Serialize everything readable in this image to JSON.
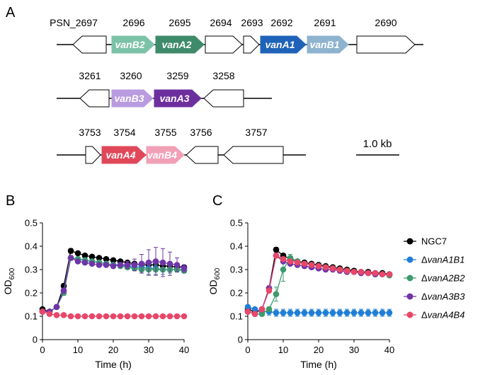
{
  "panel_labels": {
    "a": "A",
    "b": "B",
    "c": "C"
  },
  "operons": [
    {
      "genes": [
        {
          "num": "PSN_2697",
          "name": "",
          "dir": "left",
          "color": "#ffffff"
        },
        {
          "num": "2696",
          "name": "vanB2",
          "dir": "right",
          "color": "#7cc2a9"
        },
        {
          "num": "2695",
          "name": "vanA2",
          "dir": "right",
          "color": "#3f8a6a"
        },
        {
          "num": "2694",
          "name": "",
          "dir": "right",
          "color": "#ffffff"
        },
        {
          "num": "2693",
          "name": "",
          "dir": "right",
          "color": "#ffffff"
        },
        {
          "num": "2692",
          "name": "vanA1",
          "dir": "right",
          "color": "#1f63b8"
        },
        {
          "num": "2691",
          "name": "vanB1",
          "dir": "right",
          "color": "#8db3cf"
        },
        {
          "num": "2690",
          "name": "",
          "dir": "right",
          "color": "#ffffff"
        }
      ]
    },
    {
      "genes": [
        {
          "num": "3261",
          "name": "",
          "dir": "left",
          "color": "#ffffff"
        },
        {
          "num": "3260",
          "name": "vanB3",
          "dir": "right",
          "color": "#b99be0"
        },
        {
          "num": "3259",
          "name": "vanA3",
          "dir": "right",
          "color": "#6d2f9e"
        },
        {
          "num": "3258",
          "name": "",
          "dir": "left",
          "color": "#ffffff"
        }
      ]
    },
    {
      "genes": [
        {
          "num": "3753",
          "name": "",
          "dir": "right",
          "color": "#ffffff"
        },
        {
          "num": "3754",
          "name": "vanA4",
          "dir": "right",
          "color": "#e0485a"
        },
        {
          "num": "3755",
          "name": "vanB4",
          "dir": "right",
          "color": "#f2a0b6"
        },
        {
          "num": "3756",
          "name": "",
          "dir": "left",
          "color": "#ffffff"
        },
        {
          "num": "3757",
          "name": "",
          "dir": "left",
          "color": "#ffffff"
        }
      ]
    }
  ],
  "scale_bar": {
    "label": "1.0 kb"
  },
  "legend": [
    {
      "prefix": "",
      "text": "NGC7",
      "color": "#000000"
    },
    {
      "prefix": "Δ",
      "text": "vanA1B1",
      "color": "#1f7fd6"
    },
    {
      "prefix": "Δ",
      "text": "vanA2B2",
      "color": "#3d9a6d"
    },
    {
      "prefix": "Δ",
      "text": "vanA3B3",
      "color": "#6e35a8"
    },
    {
      "prefix": "Δ",
      "text": "vanA4B4",
      "color": "#e8476a"
    }
  ],
  "chart_data": [
    {
      "panel": "B",
      "type": "line",
      "xlabel": "Time (h)",
      "ylabel": "OD",
      "ylabel_sub": "600",
      "xlim": [
        0,
        40
      ],
      "ylim": [
        0,
        0.5
      ],
      "xticks": [
        0,
        10,
        20,
        30,
        40
      ],
      "yticks": [
        0,
        0.1,
        0.2,
        0.3,
        0.4,
        0.5
      ],
      "ytick_labels": [
        "0",
        "0.1",
        "0.2",
        "0.3",
        "0.4",
        "0.5"
      ],
      "x": [
        0,
        2,
        4,
        6,
        8,
        10,
        12,
        14,
        16,
        18,
        20,
        22,
        24,
        26,
        28,
        30,
        32,
        34,
        36,
        38,
        40
      ],
      "series": [
        {
          "name": "NGC7",
          "color": "#000000",
          "values": [
            0.13,
            0.12,
            0.14,
            0.23,
            0.38,
            0.37,
            0.36,
            0.355,
            0.35,
            0.345,
            0.34,
            0.335,
            0.33,
            0.325,
            0.32,
            0.32,
            0.32,
            0.315,
            0.315,
            0.31,
            0.31
          ],
          "errors": [
            0.005,
            0.005,
            0.005,
            0.01,
            0.01,
            0.008,
            0.006,
            0.006,
            0.006,
            0.006,
            0.006,
            0.006,
            0.006,
            0.006,
            0.006,
            0.006,
            0.006,
            0.006,
            0.006,
            0.006,
            0.006
          ]
        },
        {
          "name": "ΔvanA1B1",
          "color": "#1f7fd6",
          "values": [
            0.12,
            0.12,
            0.14,
            0.21,
            0.35,
            0.345,
            0.34,
            0.335,
            0.33,
            0.325,
            0.32,
            0.32,
            0.315,
            0.31,
            0.31,
            0.305,
            0.305,
            0.3,
            0.3,
            0.3,
            0.3
          ],
          "errors": [
            0.005,
            0.005,
            0.005,
            0.01,
            0.01,
            0.006,
            0.006,
            0.006,
            0.006,
            0.006,
            0.006,
            0.006,
            0.006,
            0.006,
            0.006,
            0.006,
            0.006,
            0.006,
            0.006,
            0.006,
            0.006
          ]
        },
        {
          "name": "ΔvanA2B2",
          "color": "#3d9a6d",
          "values": [
            0.12,
            0.12,
            0.14,
            0.2,
            0.35,
            0.345,
            0.34,
            0.335,
            0.33,
            0.325,
            0.32,
            0.315,
            0.31,
            0.305,
            0.3,
            0.3,
            0.3,
            0.3,
            0.3,
            0.3,
            0.295
          ],
          "errors": [
            0.005,
            0.005,
            0.005,
            0.01,
            0.01,
            0.006,
            0.006,
            0.006,
            0.006,
            0.006,
            0.006,
            0.006,
            0.006,
            0.01,
            0.015,
            0.02,
            0.02,
            0.02,
            0.015,
            0.01,
            0.006
          ]
        },
        {
          "name": "ΔvanA3B3",
          "color": "#6e35a8",
          "values": [
            0.12,
            0.12,
            0.14,
            0.21,
            0.35,
            0.335,
            0.33,
            0.325,
            0.32,
            0.32,
            0.315,
            0.32,
            0.32,
            0.32,
            0.325,
            0.33,
            0.335,
            0.33,
            0.325,
            0.32,
            0.305
          ],
          "errors": [
            0.005,
            0.005,
            0.005,
            0.01,
            0.01,
            0.006,
            0.006,
            0.006,
            0.006,
            0.006,
            0.006,
            0.01,
            0.015,
            0.025,
            0.04,
            0.055,
            0.06,
            0.06,
            0.05,
            0.03,
            0.015
          ]
        },
        {
          "name": "ΔvanA4B4",
          "color": "#e8476a",
          "values": [
            0.12,
            0.11,
            0.105,
            0.105,
            0.1,
            0.1,
            0.1,
            0.1,
            0.1,
            0.1,
            0.1,
            0.1,
            0.1,
            0.1,
            0.1,
            0.1,
            0.1,
            0.1,
            0.1,
            0.1,
            0.1
          ],
          "errors": [
            0.005,
            0.005,
            0.003,
            0.003,
            0.003,
            0.003,
            0.003,
            0.003,
            0.003,
            0.003,
            0.003,
            0.003,
            0.003,
            0.003,
            0.003,
            0.003,
            0.003,
            0.003,
            0.003,
            0.003,
            0.003
          ]
        }
      ]
    },
    {
      "panel": "C",
      "type": "line",
      "xlabel": "Time (h)",
      "ylabel": "OD",
      "ylabel_sub": "600",
      "xlim": [
        0,
        40
      ],
      "ylim": [
        0,
        0.5
      ],
      "xticks": [
        0,
        10,
        20,
        30,
        40
      ],
      "yticks": [
        0,
        0.1,
        0.2,
        0.3,
        0.4,
        0.5
      ],
      "ytick_labels": [
        "0",
        "0.1",
        "0.2",
        "0.3",
        "0.4",
        "0.5"
      ],
      "x": [
        0,
        2,
        4,
        6,
        8,
        10,
        12,
        14,
        16,
        18,
        20,
        22,
        24,
        26,
        28,
        30,
        32,
        34,
        36,
        38,
        40
      ],
      "series": [
        {
          "name": "NGC7",
          "color": "#000000",
          "values": [
            0.13,
            0.12,
            0.13,
            0.22,
            0.385,
            0.36,
            0.345,
            0.335,
            0.33,
            0.325,
            0.32,
            0.315,
            0.31,
            0.305,
            0.3,
            0.295,
            0.29,
            0.29,
            0.285,
            0.285,
            0.28
          ],
          "errors": [
            0.005,
            0.005,
            0.005,
            0.01,
            0.01,
            0.008,
            0.006,
            0.006,
            0.006,
            0.006,
            0.006,
            0.006,
            0.006,
            0.006,
            0.006,
            0.006,
            0.006,
            0.006,
            0.006,
            0.006,
            0.006
          ]
        },
        {
          "name": "ΔvanA1B1",
          "color": "#1f7fd6",
          "values": [
            0.14,
            0.13,
            0.12,
            0.12,
            0.115,
            0.115,
            0.115,
            0.115,
            0.115,
            0.115,
            0.115,
            0.115,
            0.115,
            0.115,
            0.115,
            0.115,
            0.115,
            0.115,
            0.115,
            0.115,
            0.115
          ],
          "errors": [
            0.005,
            0.005,
            0.01,
            0.015,
            0.015,
            0.015,
            0.015,
            0.015,
            0.015,
            0.015,
            0.015,
            0.015,
            0.015,
            0.015,
            0.015,
            0.015,
            0.015,
            0.015,
            0.015,
            0.015,
            0.015
          ]
        },
        {
          "name": "ΔvanA2B2",
          "color": "#3d9a6d",
          "values": [
            0.12,
            0.11,
            0.11,
            0.13,
            0.195,
            0.3,
            0.35,
            0.335,
            0.325,
            0.32,
            0.315,
            0.31,
            0.305,
            0.3,
            0.295,
            0.29,
            0.285,
            0.285,
            0.28,
            0.28,
            0.275
          ],
          "errors": [
            0.005,
            0.005,
            0.005,
            0.01,
            0.03,
            0.05,
            0.015,
            0.008,
            0.006,
            0.006,
            0.006,
            0.006,
            0.006,
            0.006,
            0.006,
            0.006,
            0.006,
            0.006,
            0.006,
            0.006,
            0.006
          ]
        },
        {
          "name": "ΔvanA3B3",
          "color": "#6e35a8",
          "values": [
            0.12,
            0.11,
            0.13,
            0.22,
            0.36,
            0.335,
            0.325,
            0.32,
            0.315,
            0.31,
            0.305,
            0.3,
            0.3,
            0.295,
            0.29,
            0.29,
            0.285,
            0.285,
            0.28,
            0.28,
            0.28
          ],
          "errors": [
            0.005,
            0.005,
            0.005,
            0.01,
            0.01,
            0.008,
            0.006,
            0.006,
            0.006,
            0.006,
            0.006,
            0.006,
            0.006,
            0.006,
            0.006,
            0.006,
            0.006,
            0.006,
            0.006,
            0.006,
            0.006
          ]
        },
        {
          "name": "ΔvanA4B4",
          "color": "#e8476a",
          "values": [
            0.12,
            0.11,
            0.13,
            0.21,
            0.36,
            0.345,
            0.335,
            0.33,
            0.325,
            0.32,
            0.315,
            0.31,
            0.305,
            0.3,
            0.295,
            0.29,
            0.29,
            0.285,
            0.285,
            0.28,
            0.28
          ],
          "errors": [
            0.005,
            0.005,
            0.005,
            0.01,
            0.01,
            0.008,
            0.006,
            0.006,
            0.006,
            0.006,
            0.006,
            0.006,
            0.006,
            0.006,
            0.006,
            0.006,
            0.006,
            0.006,
            0.006,
            0.006,
            0.006
          ]
        }
      ]
    }
  ]
}
